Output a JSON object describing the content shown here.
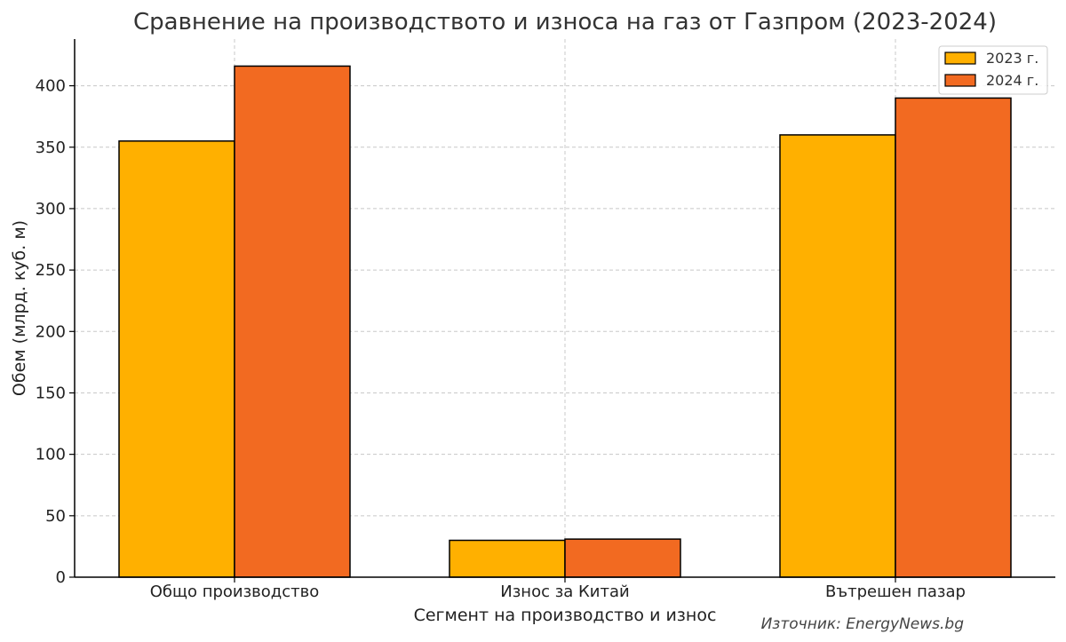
{
  "chart_data": {
    "type": "bar",
    "title": "Сравнение на производството и износа на газ от Газпром (2023-2024)",
    "xlabel": "Сегмент на производство и износ",
    "ylabel": "Обем (млрд. куб. м)",
    "categories": [
      "Общо производство",
      "Износ за Китай",
      "Вътрешен пазар"
    ],
    "series": [
      {
        "name": "2023 г.",
        "values": [
          355,
          30,
          360
        ],
        "color": "#FFB000"
      },
      {
        "name": "2024 г.",
        "values": [
          416,
          31,
          390
        ],
        "color": "#F26A21"
      }
    ],
    "ylim": [
      0,
      438
    ],
    "yticks": [
      0,
      50,
      100,
      150,
      200,
      250,
      300,
      350,
      400
    ],
    "grid": true,
    "legend_position": "top-right",
    "source": "Източник: EnergyNews.bg"
  }
}
